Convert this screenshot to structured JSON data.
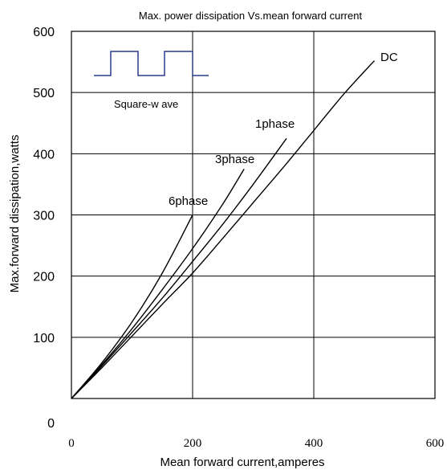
{
  "chart_data": {
    "type": "line",
    "title": "Max. power dissipation  Vs.mean  forward  current",
    "xlabel": "Mean forward  current,amperes",
    "ylabel": "Max.forward  dissipation,watts",
    "xlim": [
      0,
      600
    ],
    "ylim": [
      0,
      600
    ],
    "x_ticks": [
      "0",
      "200",
      "400",
      "600"
    ],
    "y_ticks": [
      "0",
      "100",
      "200",
      "300",
      "400",
      "500",
      "600"
    ],
    "grid": true,
    "inset_label": "Square-w ave",
    "series": [
      {
        "name": "6phase",
        "points": [
          [
            0,
            0
          ],
          [
            50,
            58
          ],
          [
            100,
            125
          ],
          [
            150,
            205
          ],
          [
            200,
            300
          ]
        ]
      },
      {
        "name": "3phase",
        "points": [
          [
            0,
            0
          ],
          [
            50,
            55
          ],
          [
            100,
            114
          ],
          [
            150,
            178
          ],
          [
            200,
            245
          ],
          [
            250,
            318
          ],
          [
            285,
            375
          ]
        ]
      },
      {
        "name": "1phase",
        "points": [
          [
            0,
            0
          ],
          [
            50,
            53
          ],
          [
            100,
            108
          ],
          [
            150,
            164
          ],
          [
            200,
            224
          ],
          [
            250,
            285
          ],
          [
            300,
            350
          ],
          [
            355,
            425
          ]
        ]
      },
      {
        "name": "DC",
        "points": [
          [
            0,
            0
          ],
          [
            50,
            50
          ],
          [
            100,
            102
          ],
          [
            150,
            154
          ],
          [
            200,
            205
          ],
          [
            250,
            262
          ],
          [
            300,
            320
          ],
          [
            350,
            378
          ],
          [
            400,
            438
          ],
          [
            450,
            498
          ],
          [
            500,
            552
          ]
        ]
      }
    ]
  }
}
